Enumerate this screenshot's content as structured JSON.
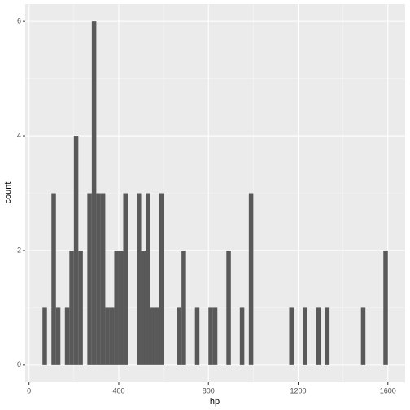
{
  "chart_data": {
    "type": "histogram",
    "x_label": "hp",
    "y_label": "count",
    "bins": [
      60,
      80,
      100,
      120,
      140,
      160,
      180,
      200,
      220,
      240,
      260,
      280,
      300,
      320,
      340,
      360,
      380,
      400,
      420,
      440,
      460,
      480,
      500,
      520,
      540,
      560,
      580,
      600,
      620,
      640,
      660,
      680,
      700,
      720,
      740,
      760,
      780,
      800,
      820,
      840,
      860,
      880,
      900,
      920,
      940,
      960,
      980,
      1000,
      1020,
      1040,
      1060,
      1080,
      1100,
      1120,
      1140,
      1160,
      1180,
      1200,
      1220,
      1240,
      1260,
      1280,
      1300,
      1320,
      1340,
      1360,
      1380,
      1400,
      1420,
      1440,
      1460,
      1480,
      1500,
      1520,
      1540,
      1560,
      1580,
      1600
    ],
    "values": [
      1,
      0,
      3,
      1,
      0,
      1,
      2,
      4,
      2,
      0,
      3,
      6,
      3,
      3,
      1,
      1,
      2,
      2,
      3,
      0,
      0,
      3,
      2,
      3,
      1,
      1,
      3,
      0,
      0,
      0,
      1,
      2,
      0,
      0,
      1,
      0,
      0,
      1,
      1,
      0,
      0,
      2,
      0,
      0,
      1,
      0,
      3,
      0,
      0,
      0,
      0,
      0,
      0,
      0,
      0,
      1,
      0,
      0,
      1,
      0,
      0,
      1,
      0,
      1,
      0,
      0,
      0,
      0,
      0,
      0,
      0,
      1,
      0,
      0,
      0,
      0,
      2
    ],
    "color": "#595959",
    "xlim": [
      -17,
      1677
    ],
    "ylim": [
      -0.3,
      6.3
    ],
    "xticks": [
      0,
      400,
      800,
      1200,
      1600
    ],
    "yticks": [
      0,
      2,
      4,
      6
    ],
    "grid": true
  }
}
